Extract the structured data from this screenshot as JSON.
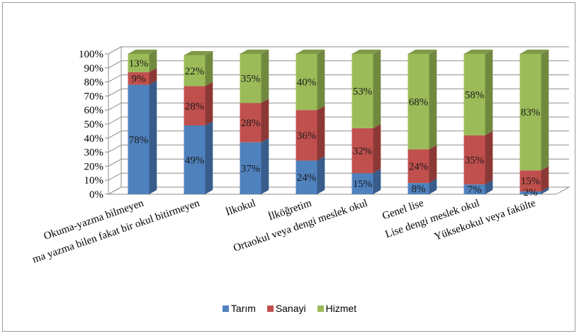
{
  "chart_data": {
    "type": "bar",
    "stacked": true,
    "percent_stacked": true,
    "three_d": true,
    "categories": [
      "Okuma-yazma bilmeyen",
      "Okuma yazma bilen fakat bir okul bitirmeyen",
      "İlkokul",
      "İlköğretim",
      "Ortaokul veya dengi meslek okul",
      "Genel lise",
      "Lise dengi meslek okul",
      "Yüksekokul veya fakülte"
    ],
    "category_display": [
      "Okuma-yazma bilmeyen",
      "ma yazma bilen fakat bir okul bitirmeyen",
      "İlkokul",
      "İlköğretim",
      "Ortaokul veya dengi meslek okul",
      "Genel lise",
      "Lise dengi meslek okul",
      "Yüksekokul veya fakülte"
    ],
    "series": [
      {
        "name": "Tarım",
        "values": [
          78,
          49,
          37,
          24,
          15,
          8,
          7,
          2
        ],
        "labels": [
          "78%",
          "49%",
          "37%",
          "24%",
          "15%",
          "8%",
          "7%",
          "2%"
        ],
        "color": "#4f81bd",
        "side_color": "#385d8a",
        "top_color": "#6a96c8"
      },
      {
        "name": "Sanayi",
        "values": [
          9,
          28,
          28,
          36,
          32,
          24,
          35,
          15
        ],
        "labels": [
          "9%",
          "28%",
          "28%",
          "36%",
          "32%",
          "24%",
          "35%",
          "15%"
        ],
        "color": "#c0504d",
        "side_color": "#8c3836",
        "top_color": "#cd6e6b"
      },
      {
        "name": "Hizmet",
        "values": [
          13,
          22,
          35,
          40,
          53,
          68,
          58,
          83
        ],
        "labels": [
          "13%",
          "22%",
          "35%",
          "40%",
          "53%",
          "68%",
          "58%",
          "83%"
        ],
        "color": "#9bbb59",
        "side_color": "#71893f",
        "top_color": "#7f9a48"
      }
    ],
    "y_ticks": [
      "0%",
      "10%",
      "20%",
      "30%",
      "40%",
      "50%",
      "60%",
      "70%",
      "80%",
      "90%",
      "100%"
    ],
    "ylim": [
      0,
      100
    ],
    "grid": true,
    "legend_position": "bottom"
  }
}
